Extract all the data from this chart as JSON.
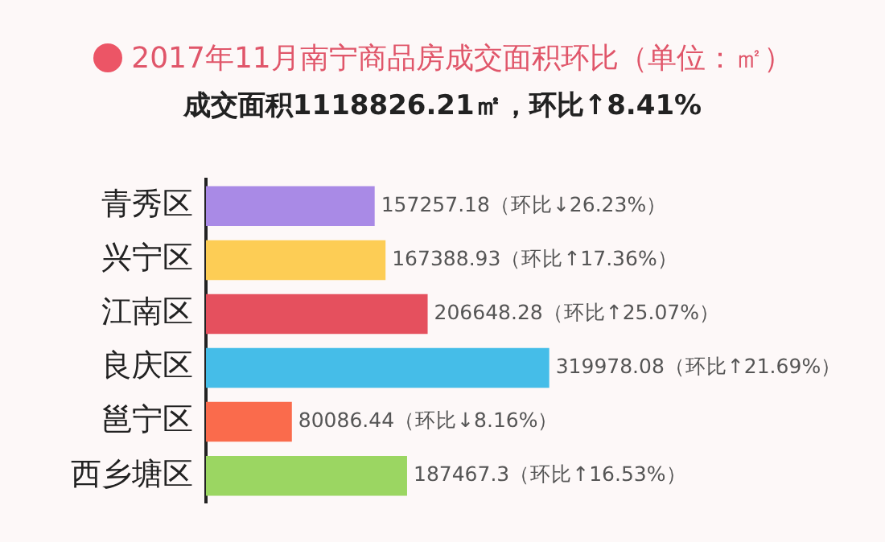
{
  "chart_data": {
    "type": "bar",
    "orientation": "horizontal",
    "title": "2017年11月南宁商品房成交面积环比（单位：㎡）",
    "subtitle": "成交面积1118826.21㎡，环比↑8.41%",
    "categories": [
      "青秀区",
      "兴宁区",
      "江南区",
      "良庆区",
      "邕宁区",
      "西乡塘区"
    ],
    "values": [
      157257.18,
      167388.93,
      206648.28,
      319978.08,
      80086.44,
      187467.3
    ],
    "colors": [
      "#a98ae6",
      "#fdcd55",
      "#e5505e",
      "#45bde8",
      "#fa6b4c",
      "#9bd662"
    ],
    "value_labels": [
      "157257.18（环比↓26.23%）",
      "167388.93（环比↑17.36%）",
      "206648.28（环比↑25.07%）",
      "319978.08（环比↑21.69%）",
      "80086.44（环比↓8.16%）",
      "187467.3（环比↑16.53%）"
    ],
    "grid": false,
    "legend": false,
    "tick_labels": "y"
  }
}
